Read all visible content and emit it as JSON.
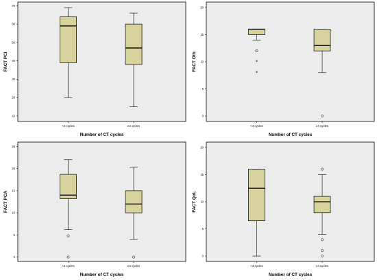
{
  "chart_data": [
    {
      "type": "box",
      "ylabel": "FACT PCI",
      "xlabel": "Number of CT cycles",
      "ylim": [
        7,
        72
      ],
      "yticks": [
        10,
        20,
        30,
        40,
        50,
        60,
        70
      ],
      "categories": [
        "<4 cycles",
        "≥4 cycles"
      ],
      "boxes": [
        {
          "min": 20,
          "q1": 39,
          "median": 59,
          "q3": 64,
          "max": 69,
          "outliers": [],
          "extremes": []
        },
        {
          "min": 15,
          "q1": 38,
          "median": 47,
          "q3": 60,
          "max": 66,
          "outliers": [],
          "extremes": []
        }
      ]
    },
    {
      "type": "box",
      "ylabel": "FACT Oth",
      "xlabel": "Number of CT cycles",
      "ylim": [
        -1,
        21
      ],
      "yticks": [
        0,
        5,
        10,
        15,
        20
      ],
      "categories": [
        "<4 cycles",
        "≥4 cycles"
      ],
      "boxes": [
        {
          "min": 14,
          "q1": 15,
          "median": 16,
          "q3": 16,
          "max": 16,
          "outliers": [
            12
          ],
          "extremes": [
            10,
            8
          ]
        },
        {
          "min": 8,
          "q1": 12,
          "median": 13,
          "q3": 16,
          "max": 16,
          "outliers": [
            0
          ],
          "extremes": []
        }
      ]
    },
    {
      "type": "box",
      "ylabel": "FACT PCA",
      "xlabel": "Number of CT cycles",
      "ylim": [
        -1,
        26
      ],
      "yticks": [
        0,
        5,
        10,
        15,
        20,
        25
      ],
      "categories": [
        "<4 cycles",
        "≥4 cycles"
      ],
      "boxes": [
        {
          "min": 6.2,
          "q1": 13.2,
          "median": 14,
          "q3": 18.7,
          "max": 22,
          "outliers": [
            4.8,
            0
          ],
          "extremes": []
        },
        {
          "min": 4,
          "q1": 10,
          "median": 12,
          "q3": 15,
          "max": 20.3,
          "outliers": [
            0
          ],
          "extremes": []
        }
      ]
    },
    {
      "type": "box",
      "ylabel": "FACT QoL",
      "xlabel": "Number of CT cycles",
      "ylim": [
        -1,
        21
      ],
      "yticks": [
        0,
        5,
        10,
        15,
        20
      ],
      "categories": [
        "<4 cycles",
        "≥4 cycles"
      ],
      "boxes": [
        {
          "min": 0,
          "q1": 6.5,
          "median": 12.5,
          "q3": 16,
          "max": 16,
          "outliers": [],
          "extremes": []
        },
        {
          "min": 4,
          "q1": 8,
          "median": 10,
          "q3": 11,
          "max": 15,
          "outliers": [
            16,
            3,
            1,
            0
          ],
          "extremes": []
        }
      ]
    }
  ]
}
